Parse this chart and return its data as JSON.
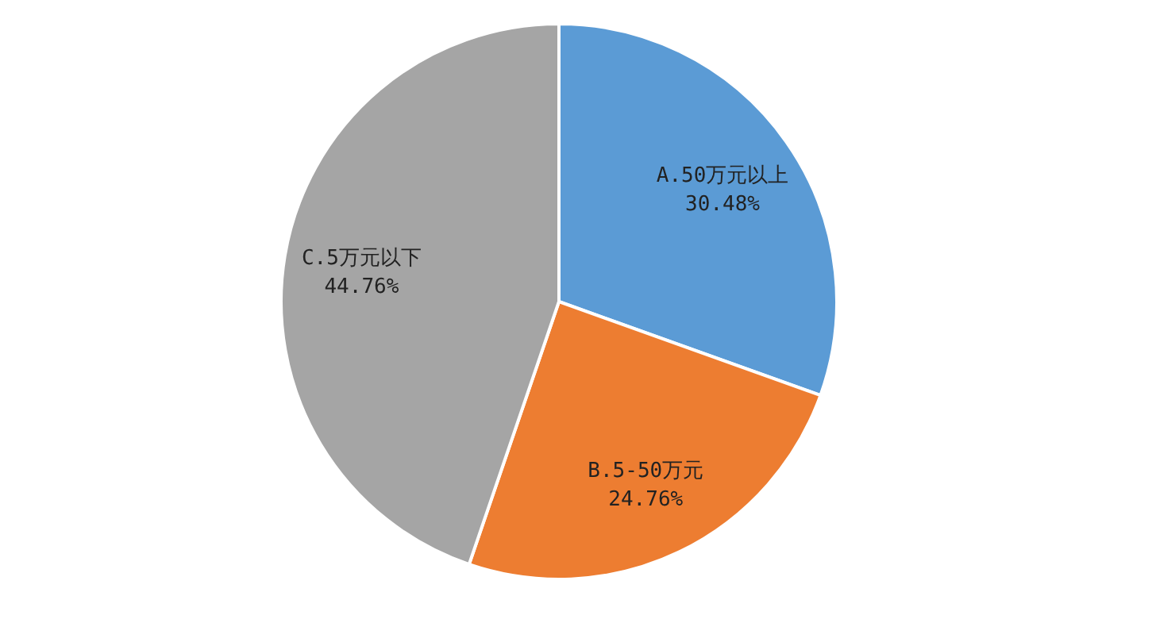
{
  "chart_data": {
    "type": "pie",
    "categories": [
      "A.50万元以上",
      "B.5-50万元",
      "C.5万元以下"
    ],
    "values": [
      30.48,
      24.76,
      44.76
    ],
    "value_labels": [
      "30.48%",
      "24.76%",
      "44.76%"
    ],
    "colors": [
      "#5b9bd5",
      "#ed7d31",
      "#a5a5a5"
    ]
  }
}
